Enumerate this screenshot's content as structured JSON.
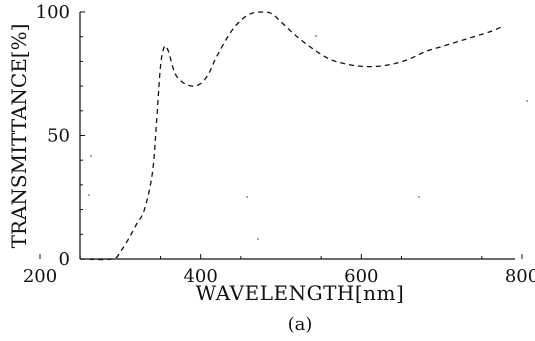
{
  "chart_data": {
    "type": "line",
    "xlabel": "WAVELENGTH[nm]",
    "ylabel": "TRANSMITTANCE[%]",
    "caption": "(a)",
    "xlim": [
      200,
      800
    ],
    "ylim": [
      0,
      100
    ],
    "x_ticks": [
      200,
      400,
      600,
      800
    ],
    "y_ticks": [
      0,
      50,
      100
    ],
    "grid": false,
    "series": [
      {
        "x": [
          200,
          250,
          290,
          300,
          310,
          320,
          330,
          340,
          345,
          350,
          355,
          360,
          365,
          370,
          380,
          390,
          400,
          410,
          420,
          440,
          460,
          480,
          490,
          500,
          520,
          540,
          560,
          580,
          600,
          620,
          640,
          660,
          680,
          700,
          720,
          740,
          760,
          775
        ],
        "y": [
          0,
          0,
          0,
          3,
          8,
          14,
          20,
          35,
          55,
          78,
          86,
          84,
          78,
          74,
          71,
          70,
          71,
          75,
          82,
          93,
          99,
          100,
          99,
          96,
          90,
          85,
          81,
          79,
          78,
          78,
          79,
          81,
          84,
          86,
          88,
          90,
          92,
          94
        ]
      }
    ]
  }
}
